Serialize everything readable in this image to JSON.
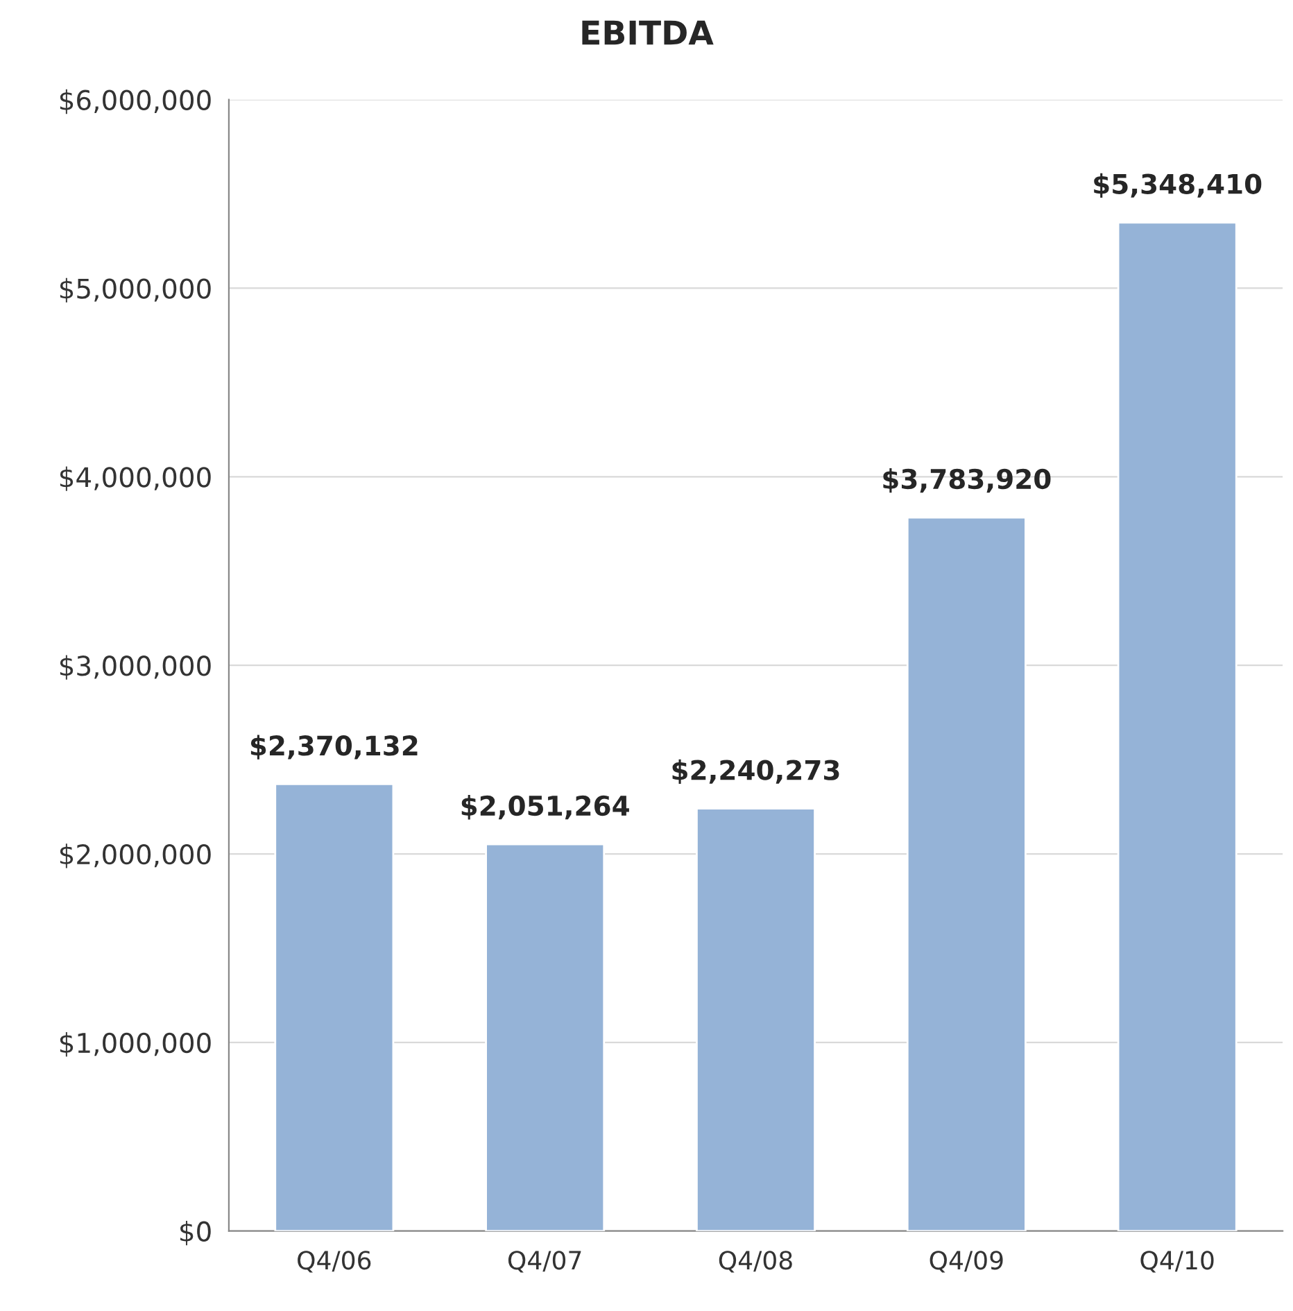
{
  "chart_data": {
    "type": "bar",
    "title": "EBITDA",
    "categories": [
      "Q4/06",
      "Q4/07",
      "Q4/08",
      "Q4/09",
      "Q4/10"
    ],
    "values": [
      2370132,
      2051264,
      2240273,
      3783920,
      5348410
    ],
    "value_labels": [
      "$2,370,132",
      "$2,051,264",
      "$2,240,273",
      "$3,783,920",
      "$5,348,410"
    ],
    "color": "#95b3d7",
    "ylim": [
      0,
      6000000
    ],
    "yticks": [
      {
        "value": 0,
        "label": "$0"
      },
      {
        "value": 1000000,
        "label": "$1,000,000"
      },
      {
        "value": 2000000,
        "label": "$2,000,000"
      },
      {
        "value": 3000000,
        "label": "$3,000,000"
      },
      {
        "value": 4000000,
        "label": "$4,000,000"
      },
      {
        "value": 5000000,
        "label": "$5,000,000"
      },
      {
        "value": 6000000,
        "label": "$6,000,000"
      }
    ],
    "grid": "y",
    "legend": false
  }
}
